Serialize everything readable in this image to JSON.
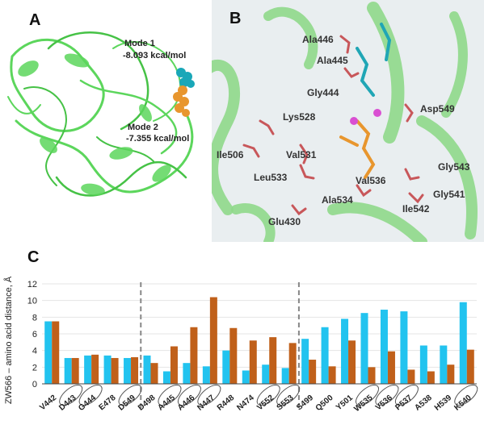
{
  "panels": {
    "a_label": "A",
    "b_label": "B",
    "c_label": "C"
  },
  "panel_a": {
    "mode1_name": "Mode 1",
    "mode1_energy": "-8.093 kcal/mol",
    "mode2_name": "Mode 2",
    "mode2_energy": "-7.355 kcal/mol",
    "protein_color": "#5cd65c",
    "mode1_color": "#19a7b8",
    "mode2_color": "#e8962e"
  },
  "panel_b": {
    "residues": [
      "Ala446",
      "Ala445",
      "Gly444",
      "Asp549",
      "Lys528",
      "Ile506",
      "Val531",
      "Leu533",
      "Val536",
      "Gly543",
      "Ala534",
      "Gly541",
      "Ile542",
      "Glu430"
    ]
  },
  "chart_data": {
    "type": "bar",
    "ylabel": "ZW566 – amino acid distance, Å",
    "ylim": [
      0,
      12
    ],
    "yticks": [
      0,
      2,
      4,
      6,
      8,
      10,
      12
    ],
    "categories": [
      "V442",
      "D443",
      "G444",
      "E478",
      "D549",
      "D498",
      "A445",
      "A446",
      "N447",
      "R448",
      "N474",
      "V552",
      "S553",
      "S499",
      "Q500",
      "Y501",
      "W535",
      "V536",
      "P537",
      "A538",
      "H539",
      "K540"
    ],
    "circled": [
      "D443",
      "G444",
      "D549",
      "A445",
      "A446",
      "N447",
      "V552",
      "S553",
      "W535",
      "V536",
      "P537",
      "K540"
    ],
    "dividers_after": [
      "D549",
      "S553"
    ],
    "series": [
      {
        "values": [
          7.5,
          3.1,
          3.4,
          3.4,
          3.1,
          3.4,
          1.5,
          2.5,
          2.1,
          4.0,
          1.6,
          2.3,
          1.9,
          5.4,
          6.8,
          7.8,
          8.5,
          8.9,
          8.7,
          4.6,
          4.6,
          9.8
        ],
        "color": "#22c3ef"
      },
      {
        "values": [
          7.5,
          3.1,
          3.5,
          3.1,
          3.2,
          2.5,
          4.5,
          6.8,
          10.4,
          6.7,
          5.2,
          5.6,
          4.9,
          2.9,
          2.1,
          5.2,
          2.0,
          3.9,
          1.7,
          1.5,
          2.3,
          4.1
        ],
        "color": "#c0601a"
      }
    ]
  }
}
